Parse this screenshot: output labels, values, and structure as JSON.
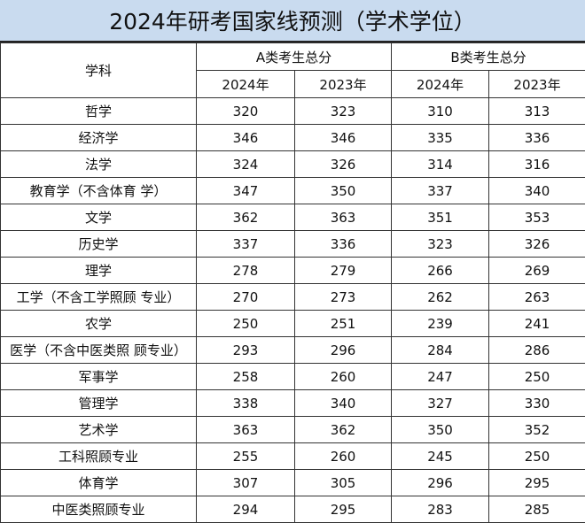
{
  "title": "2024年研考国家线预测（学术学位）",
  "header": {
    "subject": "学科",
    "group_a": "A类考生总分",
    "group_b": "B类考生总分",
    "years": [
      "2024年",
      "2023年",
      "2024年",
      "2023年"
    ]
  },
  "rows": [
    {
      "subject": "哲学",
      "values": [
        "320",
        "323",
        "310",
        "313"
      ]
    },
    {
      "subject": "经济学",
      "values": [
        "346",
        "346",
        "335",
        "336"
      ]
    },
    {
      "subject": "法学",
      "values": [
        "324",
        "326",
        "314",
        "316"
      ]
    },
    {
      "subject": "教育学（不含体育 学）",
      "values": [
        "347",
        "350",
        "337",
        "340"
      ]
    },
    {
      "subject": "文学",
      "values": [
        "362",
        "363",
        "351",
        "353"
      ]
    },
    {
      "subject": "历史学",
      "values": [
        "337",
        "336",
        "323",
        "326"
      ]
    },
    {
      "subject": "理学",
      "values": [
        "278",
        "279",
        "266",
        "269"
      ]
    },
    {
      "subject": "工学（不含工学照顾 专业）",
      "values": [
        "270",
        "273",
        "262",
        "263"
      ]
    },
    {
      "subject": "农学",
      "values": [
        "250",
        "251",
        "239",
        "241"
      ]
    },
    {
      "subject": "医学（不含中医类照 顾专业）",
      "values": [
        "293",
        "296",
        "284",
        "286"
      ]
    },
    {
      "subject": "军事学",
      "values": [
        "258",
        "260",
        "247",
        "250"
      ]
    },
    {
      "subject": "管理学",
      "values": [
        "338",
        "340",
        "327",
        "330"
      ]
    },
    {
      "subject": "艺术学",
      "values": [
        "363",
        "362",
        "350",
        "352"
      ]
    },
    {
      "subject": "工科照顾专业",
      "values": [
        "255",
        "260",
        "245",
        "250"
      ]
    },
    {
      "subject": "体育学",
      "values": [
        "307",
        "305",
        "296",
        "295"
      ]
    },
    {
      "subject": "中医类照顾专业",
      "values": [
        "294",
        "295",
        "283",
        "285"
      ]
    }
  ]
}
